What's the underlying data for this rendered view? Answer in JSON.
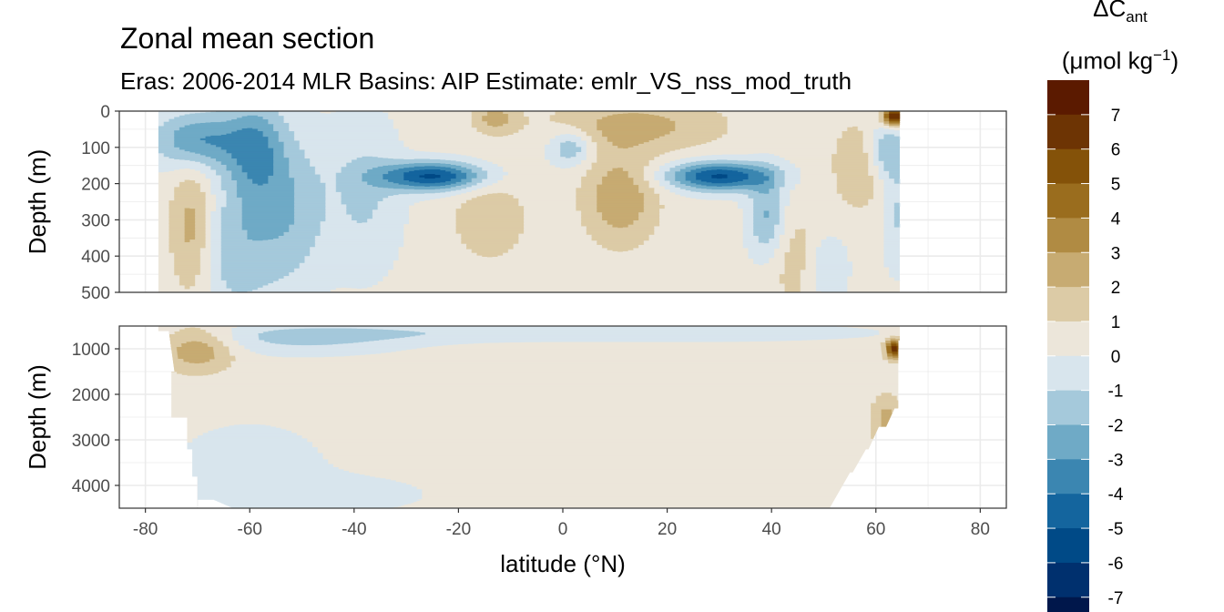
{
  "chart_data": {
    "type": "heatmap",
    "title": "Zonal mean section",
    "subtitle": "Eras: 2006-2014 MLR Basins: AIP Estimate: emlr_VS_nss_mod_truth",
    "xlabel": "latitude (°N)",
    "ylabel": "Depth (m)",
    "xlim": [
      -85,
      85
    ],
    "x_ticks": [
      -80,
      -60,
      -40,
      -20,
      0,
      20,
      40,
      60,
      80
    ],
    "data_lat_range": [
      -78,
      64
    ],
    "grid": true,
    "panels": [
      {
        "name": "upper",
        "ylim": [
          500,
          0
        ],
        "y_ticks": [
          0,
          100,
          200,
          300,
          400,
          500
        ],
        "features": [
          {
            "lat": -25,
            "depth": 180,
            "value": -5.5,
            "sx": 7,
            "sy": 28
          },
          {
            "lat": 30,
            "depth": 180,
            "value": -5.5,
            "sx": 7,
            "sy": 28
          },
          {
            "lat": -70,
            "depth": 80,
            "value": -3.5,
            "sx": 6,
            "sy": 55
          },
          {
            "lat": -59,
            "depth": 110,
            "value": -3.0,
            "sx": 4,
            "sy": 100
          },
          {
            "lat": -63,
            "depth": 380,
            "value": -2.0,
            "sx": 6,
            "sy": 130
          },
          {
            "lat": -52,
            "depth": 270,
            "value": -2.0,
            "sx": 5,
            "sy": 150
          },
          {
            "lat": -38,
            "depth": 230,
            "value": -1.5,
            "sx": 5,
            "sy": 150
          },
          {
            "lat": 1.5,
            "depth": 100,
            "value": -2.5,
            "sx": 3,
            "sy": 35
          },
          {
            "lat": 39,
            "depth": 290,
            "value": -2.5,
            "sx": 2.5,
            "sy": 80
          },
          {
            "lat": 50,
            "depth": 430,
            "value": -2.0,
            "sx": 3,
            "sy": 70
          },
          {
            "lat": 62,
            "depth": 110,
            "value": -2.5,
            "sx": 2.5,
            "sy": 55
          },
          {
            "lat": 64,
            "depth": 280,
            "value": -1.5,
            "sx": 2,
            "sy": 110
          },
          {
            "lat": -71,
            "depth": 330,
            "value": 2.5,
            "sx": 3,
            "sy": 130
          },
          {
            "lat": 11,
            "depth": 240,
            "value": 2.5,
            "sx": 5,
            "sy": 90
          },
          {
            "lat": 14,
            "depth": 40,
            "value": 2.0,
            "sx": 12,
            "sy": 50
          },
          {
            "lat": -14,
            "depth": 300,
            "value": 1.5,
            "sx": 5,
            "sy": 80
          },
          {
            "lat": 46,
            "depth": 420,
            "value": 1.5,
            "sx": 4,
            "sy": 100
          },
          {
            "lat": 57,
            "depth": 150,
            "value": 1.5,
            "sx": 4,
            "sy": 90
          },
          {
            "lat": -13,
            "depth": 20,
            "value": 2.0,
            "sx": 3,
            "sy": 30
          },
          {
            "lat": 63.5,
            "depth": 15,
            "value": 7.0,
            "sx": 1.5,
            "sy": 18
          }
        ]
      },
      {
        "name": "lower",
        "ylim": [
          4500,
          500
        ],
        "y_ticks": [
          1000,
          2000,
          3000,
          4000
        ],
        "features": [
          {
            "lat": -70,
            "depth": 1000,
            "value": 2.5,
            "sx": 5,
            "sy": 350
          },
          {
            "lat": 62,
            "depth": 2600,
            "value": 2.0,
            "sx": 2,
            "sy": 400
          },
          {
            "lat": 63.5,
            "depth": 1000,
            "value": 6.0,
            "sx": 1.2,
            "sy": 150
          },
          {
            "lat": -50,
            "depth": 800,
            "value": -1.5,
            "sx": 15,
            "sy": 250
          },
          {
            "lat": -25,
            "depth": 650,
            "value": -1.0,
            "sx": 25,
            "sy": 150
          },
          {
            "lat": 30,
            "depth": 650,
            "value": -1.0,
            "sx": 25,
            "sy": 150
          },
          {
            "lat": -60,
            "depth": 3600,
            "value": -0.9,
            "sx": 12,
            "sy": 800
          },
          {
            "lat": -40,
            "depth": 4200,
            "value": -0.8,
            "sx": 12,
            "sy": 300
          }
        ]
      }
    ],
    "legend": {
      "title": "ΔC",
      "title_sub": "ant",
      "title_unit": "(μmol kg",
      "title_unit_sup": "−1",
      "title_unit_end": ")",
      "position": "right",
      "breaks": [
        -8,
        -7,
        -6,
        -5,
        -4,
        -3,
        -2,
        -1,
        0,
        1,
        2,
        3,
        4,
        5,
        6,
        7,
        8
      ],
      "labels": [
        "7",
        "6",
        "5",
        "4",
        "3",
        "2",
        "1",
        "0",
        "-1",
        "-2",
        "-3",
        "-4",
        "-5",
        "-6",
        "-7"
      ],
      "colors": [
        "#00174b",
        "#00306e",
        "#004a87",
        "#14659e",
        "#3b86b1",
        "#6faac6",
        "#a5c9db",
        "#d8e5ed",
        "#ece6da",
        "#dccba6",
        "#c7ab72",
        "#b08b43",
        "#9a6d1e",
        "#845209",
        "#6d3404",
        "#5b1a00"
      ]
    }
  }
}
